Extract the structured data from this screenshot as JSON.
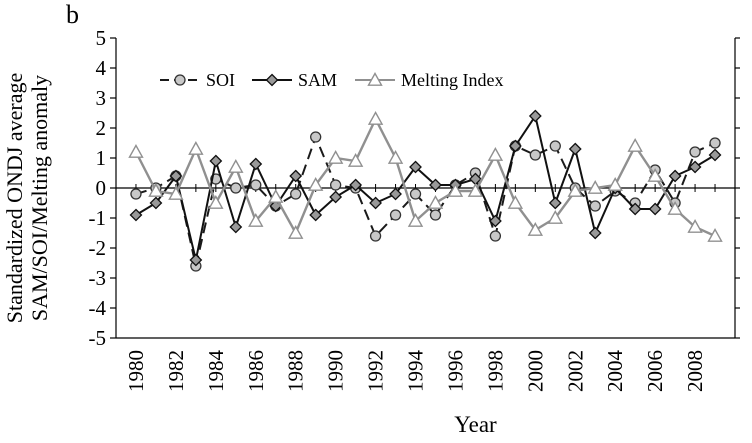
{
  "panel_label": "b",
  "chart_data": {
    "type": "line",
    "title": "",
    "xlabel": "Year",
    "ylabel": [
      "Standardized ONDJ average",
      "SAM/SOI/Melting anomaly"
    ],
    "ylim": [
      -5,
      5
    ],
    "yticks": [
      5,
      4,
      3,
      2,
      1,
      0,
      -1,
      -2,
      -3,
      -4,
      -5
    ],
    "xlim": [
      1979,
      2010
    ],
    "xticks": [
      1980,
      1982,
      1984,
      1986,
      1988,
      1990,
      1992,
      1994,
      1996,
      1998,
      2000,
      2002,
      2004,
      2006,
      2008
    ],
    "grid": false,
    "legend_position": "top-left",
    "x": [
      1980,
      1981,
      1982,
      1983,
      1984,
      1985,
      1986,
      1987,
      1988,
      1989,
      1990,
      1991,
      1992,
      1993,
      1994,
      1995,
      1996,
      1997,
      1998,
      1999,
      2000,
      2001,
      2002,
      2003,
      2004,
      2005,
      2006,
      2007,
      2008,
      2009
    ],
    "series": [
      {
        "name": "SOI",
        "style": "dashed",
        "marker": "circle",
        "color": "#1a1a1a",
        "marker_fill": "#c8c8c8",
        "values": [
          -0.2,
          0.0,
          0.4,
          -2.6,
          0.3,
          0.0,
          0.1,
          -0.6,
          -0.2,
          1.7,
          0.1,
          0.0,
          -1.6,
          -0.9,
          -0.2,
          -0.9,
          0.1,
          0.5,
          -1.6,
          1.4,
          1.1,
          1.4,
          0.0,
          -0.6,
          -0.1,
          -0.5,
          0.6,
          -0.5,
          1.2,
          1.5
        ]
      },
      {
        "name": "SAM",
        "style": "solid",
        "marker": "diamond",
        "color": "#111111",
        "marker_fill": "#999999",
        "values": [
          -0.9,
          -0.5,
          0.4,
          -2.4,
          0.9,
          -1.3,
          0.8,
          -0.6,
          0.4,
          -0.9,
          -0.3,
          0.1,
          -0.5,
          -0.2,
          0.7,
          0.1,
          0.1,
          0.3,
          -1.1,
          1.4,
          2.4,
          -0.5,
          1.3,
          -1.5,
          0.0,
          -0.7,
          -0.7,
          0.4,
          0.7,
          1.1
        ]
      },
      {
        "name": "Melting Index",
        "style": "solid",
        "marker": "triangle",
        "color": "#909090",
        "marker_fill": "#ffffff",
        "values": [
          1.2,
          -0.1,
          -0.2,
          1.3,
          -0.5,
          0.7,
          -1.1,
          -0.3,
          -1.5,
          0.1,
          1.0,
          0.9,
          2.3,
          1.0,
          -1.1,
          -0.5,
          -0.1,
          -0.1,
          1.1,
          -0.5,
          -1.4,
          -1.0,
          -0.1,
          0.0,
          0.1,
          1.4,
          0.4,
          -0.7,
          -1.3,
          -1.6
        ]
      }
    ]
  }
}
